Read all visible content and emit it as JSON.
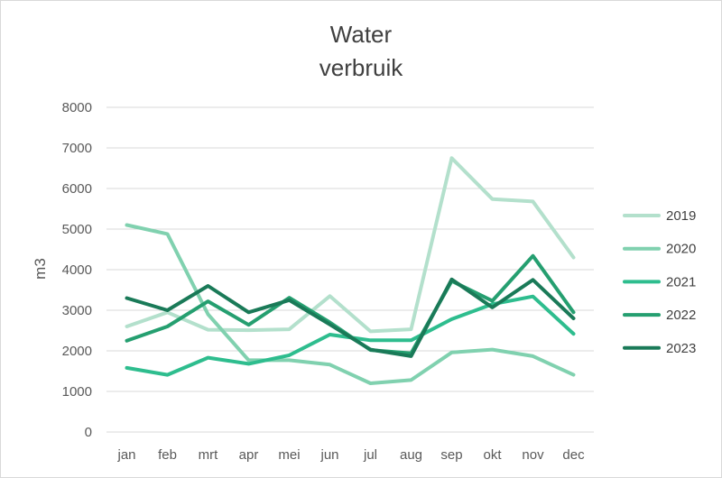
{
  "chart_data": {
    "type": "line",
    "title": [
      "Water",
      "verbruik"
    ],
    "xlabel": "",
    "ylabel": "m3",
    "categories": [
      "jan",
      "feb",
      "mrt",
      "apr",
      "mei",
      "jun",
      "jul",
      "aug",
      "sep",
      "okt",
      "nov",
      "dec"
    ],
    "ylim": [
      0,
      8000
    ],
    "yticks": [
      0,
      1000,
      2000,
      3000,
      4000,
      5000,
      6000,
      7000,
      8000
    ],
    "grid": true,
    "legend_position": "right",
    "series": [
      {
        "name": "2019",
        "color": "#b3e0cc",
        "values": [
          2600,
          2950,
          2520,
          2510,
          2530,
          3350,
          2480,
          2530,
          6750,
          5740,
          5680,
          4300
        ]
      },
      {
        "name": "2020",
        "color": "#80d1af",
        "values": [
          5100,
          4880,
          2900,
          1770,
          1770,
          1660,
          1200,
          1280,
          1960,
          2030,
          1870,
          1410
        ]
      },
      {
        "name": "2021",
        "color": "#2ebd8e",
        "values": [
          1580,
          1410,
          1830,
          1680,
          1890,
          2400,
          2260,
          2260,
          2780,
          3150,
          3340,
          2420
        ]
      },
      {
        "name": "2022",
        "color": "#259f70",
        "values": [
          2250,
          2600,
          3220,
          2640,
          3310,
          2700,
          2020,
          1940,
          3720,
          3230,
          4340,
          2950
        ]
      },
      {
        "name": "2023",
        "color": "#1a7a58",
        "values": [
          3300,
          3000,
          3600,
          2950,
          3250,
          2650,
          2030,
          1870,
          3760,
          3070,
          3750,
          2800
        ]
      }
    ]
  }
}
